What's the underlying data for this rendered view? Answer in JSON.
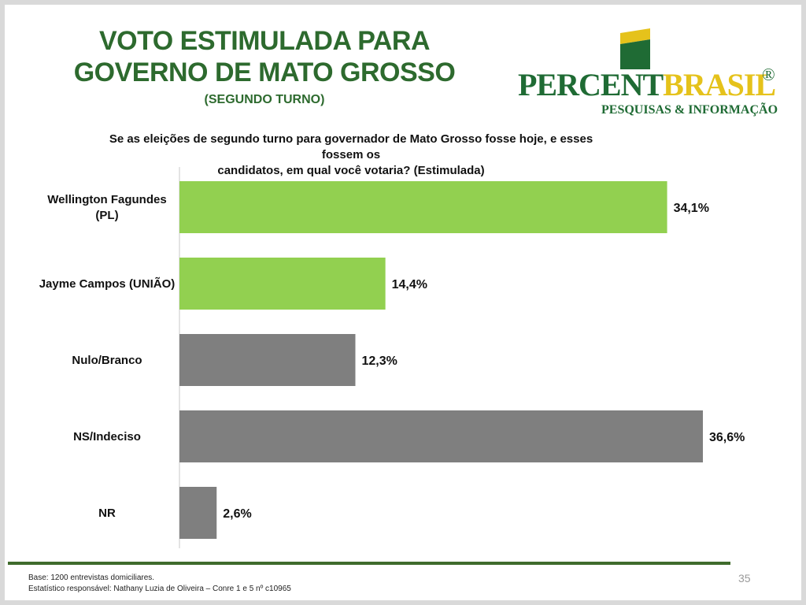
{
  "header": {
    "title_line1": "VOTO ESTIMULADA PARA",
    "title_line2": "GOVERNO DE MATO GROSSO",
    "subtitle": "(SEGUNDO TURNO)"
  },
  "logo": {
    "brand_primary": "PERCENT",
    "brand_accent": "BRASIL",
    "registered": "®",
    "tagline": "PESQUISAS & INFORMAÇÃO"
  },
  "question": {
    "line1": "Se as eleições de segundo turno para governador de Mato Grosso fosse hoje, e esses fossem os",
    "line2": "candidatos, em qual você votaria? (Estimulada)"
  },
  "chart_data": {
    "type": "bar",
    "orientation": "horizontal",
    "categories": [
      [
        "Wellington Fagundes",
        "(PL)"
      ],
      [
        "Jayme Campos (UNIÃO)"
      ],
      [
        "Nulo/Branco"
      ],
      [
        "NS/Indeciso"
      ],
      [
        "NR"
      ]
    ],
    "values": [
      34.1,
      14.4,
      12.3,
      36.6,
      2.6
    ],
    "value_labels": [
      "34,1%",
      "14,4%",
      "12,3%",
      "36,6%",
      "2,6%"
    ],
    "bar_colors": [
      "#92d050",
      "#92d050",
      "#7f7f7f",
      "#7f7f7f",
      "#7f7f7f"
    ],
    "xlim": [
      0,
      36.6
    ],
    "grid": false,
    "legend": "none"
  },
  "footer": {
    "base": "Base: 1200 entrevistas domiciliares.",
    "statistician": "Estatístico responsável: Nathany Luzia de Oliveira – Conre 1 e 5 nº c10965",
    "page_number": "35"
  },
  "colors": {
    "title_green": "#2d6a2e",
    "brand_green": "#1f6b34",
    "brand_yellow": "#e5c21b",
    "footer_rule": "#3f6b2c"
  }
}
